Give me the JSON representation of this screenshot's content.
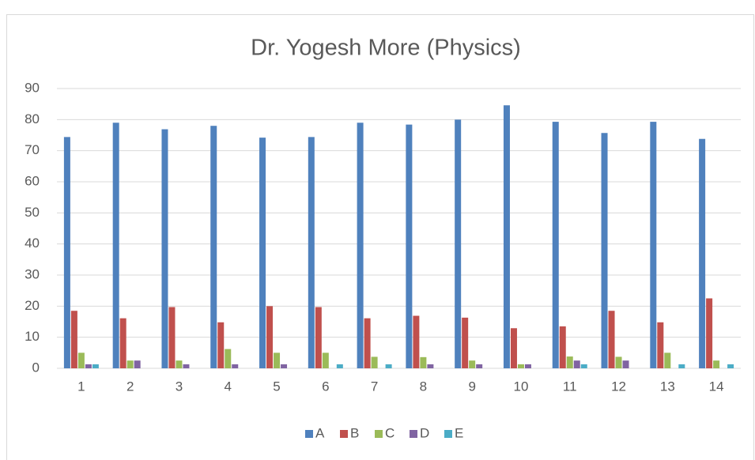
{
  "chart_data": {
    "type": "bar",
    "title": "Dr. Yogesh More (Physics)",
    "categories": [
      "1",
      "2",
      "3",
      "4",
      "5",
      "6",
      "7",
      "8",
      "9",
      "10",
      "11",
      "12",
      "13",
      "14"
    ],
    "series": [
      {
        "name": "A",
        "color": "#4f81bd",
        "values": [
          74.4,
          79,
          76.9,
          78,
          74.2,
          74.4,
          79,
          78.4,
          80,
          84.6,
          79.3,
          75.7,
          79.3,
          73.8
        ]
      },
      {
        "name": "B",
        "color": "#c0504d",
        "values": [
          18.5,
          16.1,
          19.7,
          14.8,
          20,
          19.7,
          16.1,
          16.9,
          16.3,
          12.9,
          13.5,
          18.5,
          14.8,
          22.5
        ]
      },
      {
        "name": "C",
        "color": "#9bbb59",
        "values": [
          5,
          2.5,
          2.5,
          6.2,
          5,
          5,
          3.7,
          3.6,
          2.5,
          1.3,
          3.8,
          3.7,
          5,
          2.5
        ]
      },
      {
        "name": "D",
        "color": "#8064a2",
        "values": [
          1.3,
          2.5,
          1.3,
          1.3,
          1.3,
          0,
          0,
          1.3,
          1.3,
          1.3,
          2.5,
          2.5,
          0,
          0
        ]
      },
      {
        "name": "E",
        "color": "#4bacc6",
        "values": [
          1.3,
          0,
          0,
          0,
          0,
          1.3,
          1.3,
          0,
          0,
          0,
          1.3,
          0,
          1.3,
          1.3
        ]
      }
    ],
    "ylim": [
      0,
      90
    ],
    "yticks": [
      0,
      10,
      20,
      30,
      40,
      50,
      60,
      70,
      80,
      90
    ],
    "grid": true,
    "legend": "bottom"
  }
}
